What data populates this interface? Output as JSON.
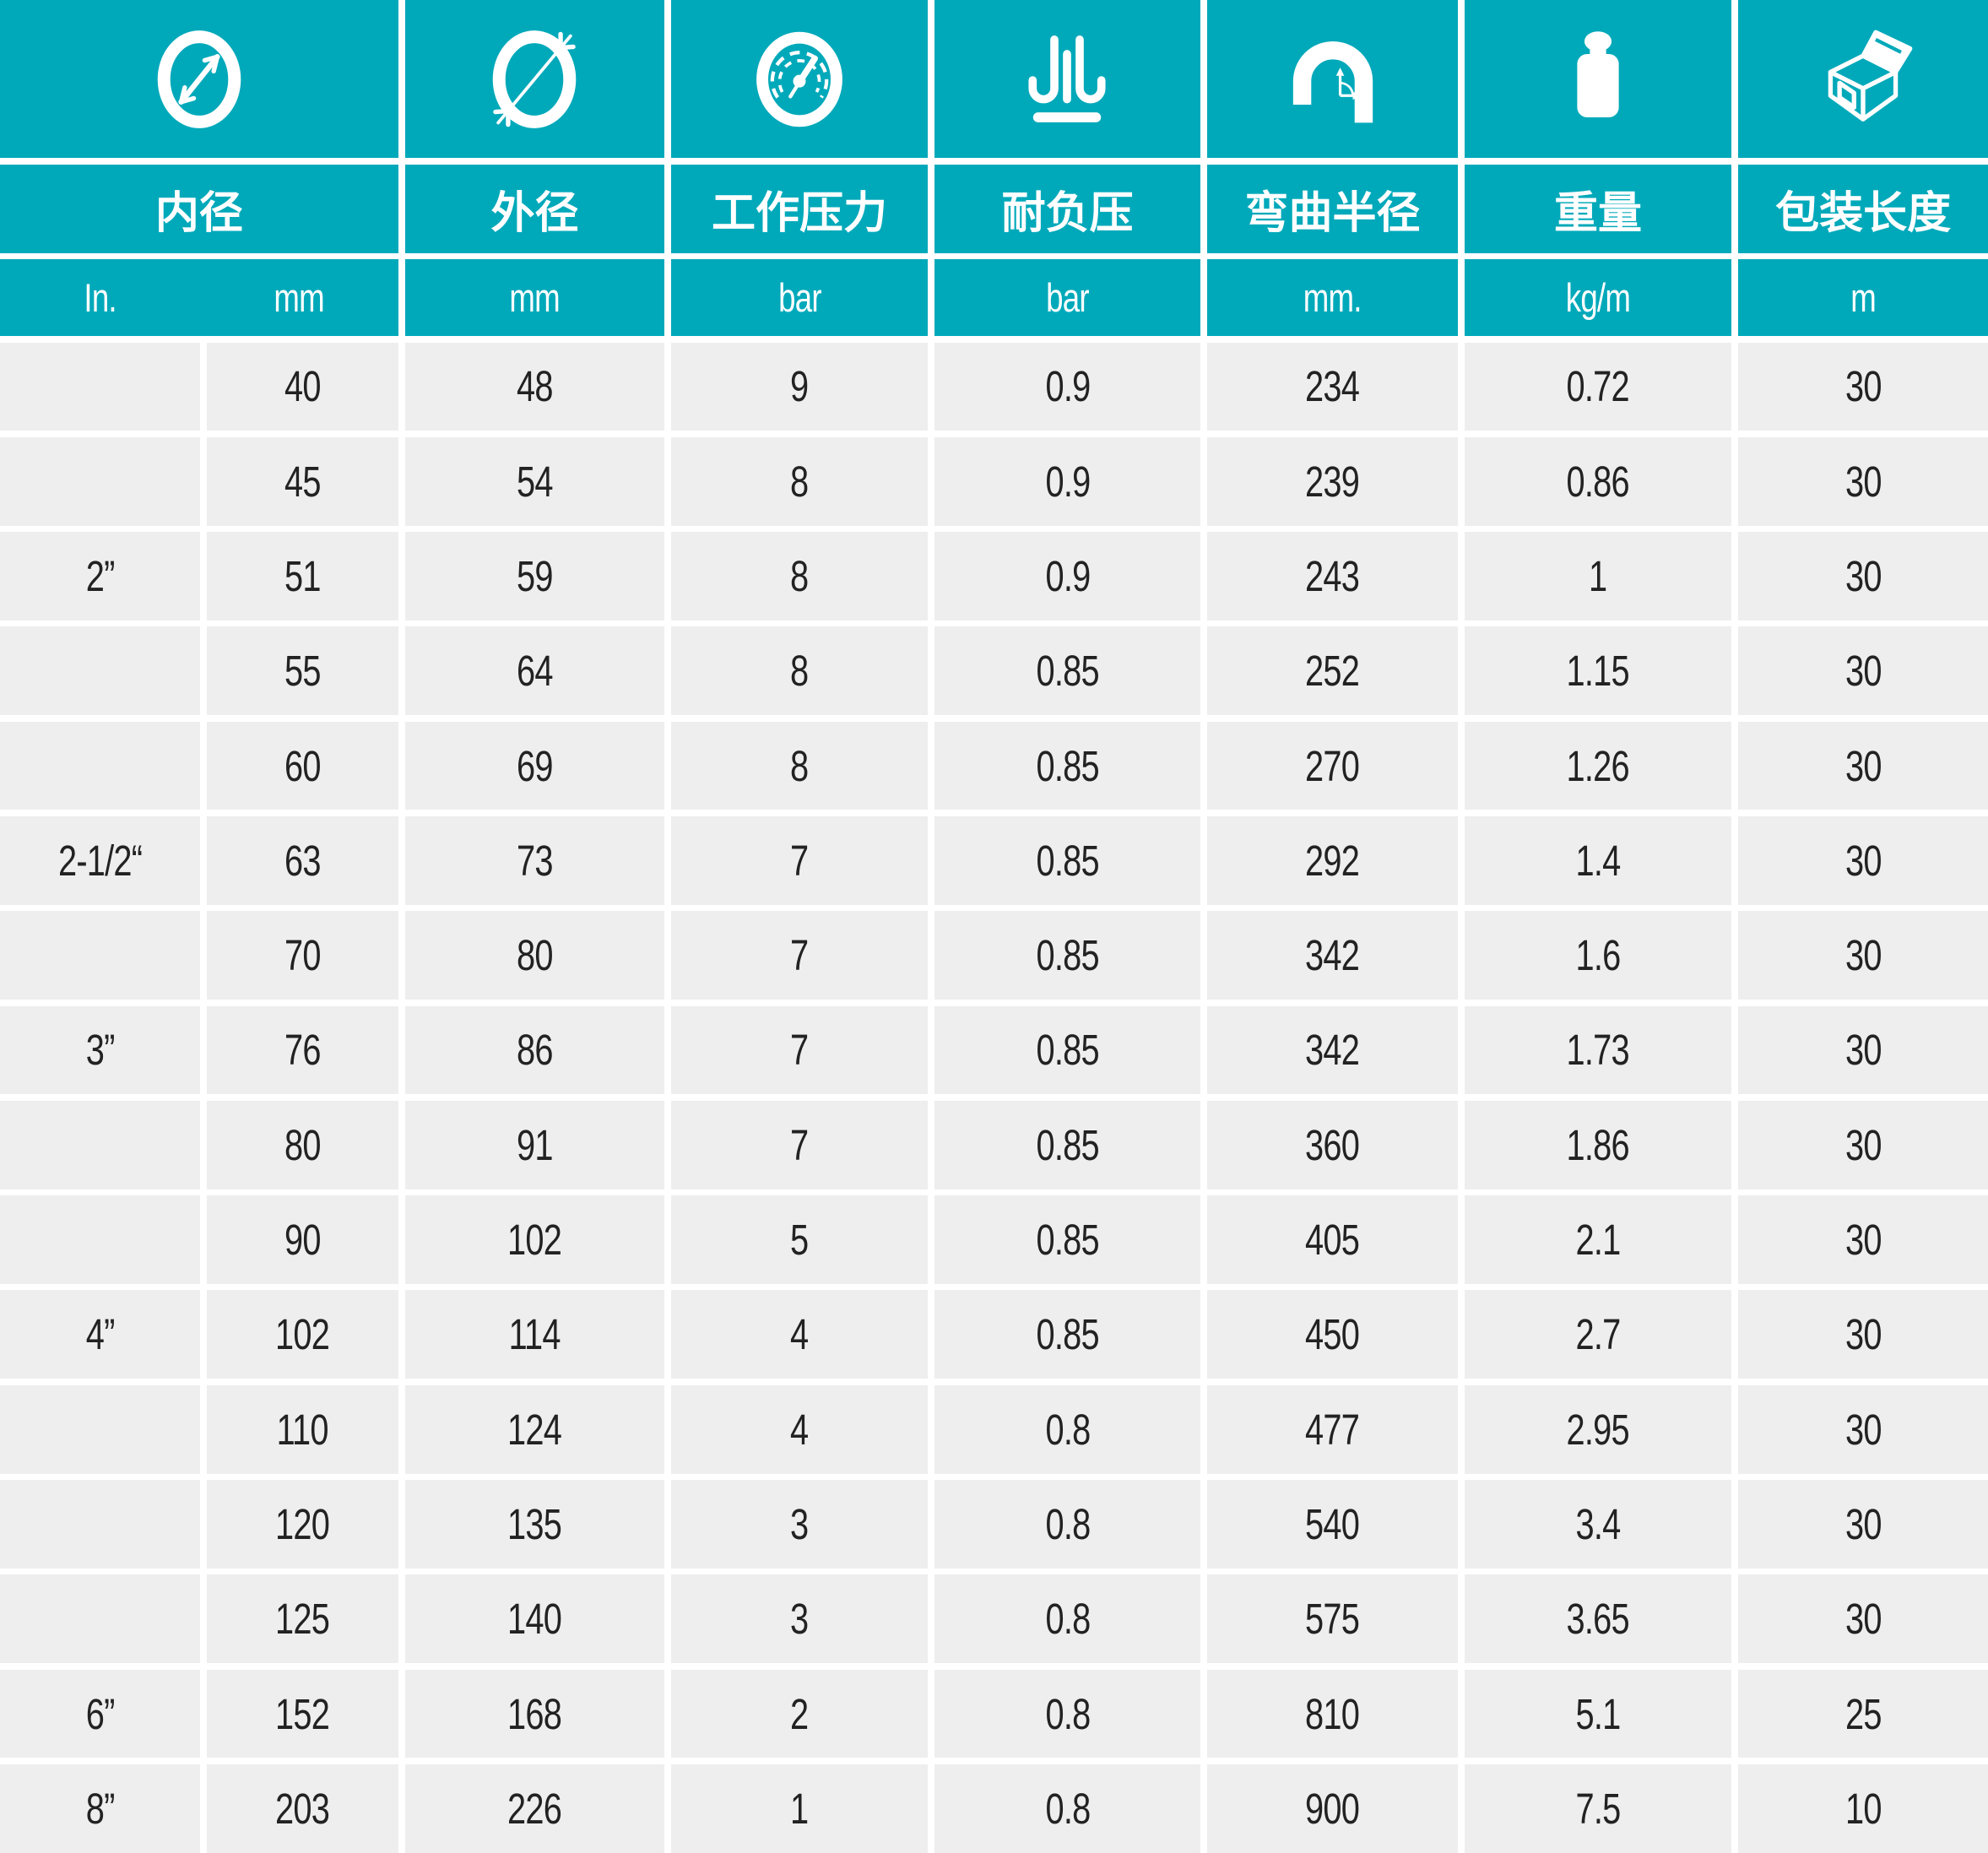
{
  "table": {
    "columns": [
      {
        "label": "内径",
        "icon": "inner-diameter-icon",
        "units": [
          "In.",
          "mm"
        ]
      },
      {
        "label": "外径",
        "icon": "outer-diameter-icon",
        "unit": "mm"
      },
      {
        "label": "工作压力",
        "icon": "pressure-gauge-icon",
        "unit": "bar"
      },
      {
        "label": "耐负压",
        "icon": "vacuum-resistance-icon",
        "unit": "bar"
      },
      {
        "label": "弯曲半径",
        "icon": "bend-radius-icon",
        "unit": "mm."
      },
      {
        "label": "重量",
        "icon": "weight-icon",
        "unit": "kg/m"
      },
      {
        "label": "包装长度",
        "icon": "package-length-icon",
        "unit": "m"
      }
    ],
    "column_keys": [
      "inch",
      "inner_mm",
      "outer_mm",
      "working_pressure_bar",
      "vacuum_bar",
      "bend_radius_mm",
      "weight_kg_m",
      "packing_length_m"
    ],
    "rows": [
      [
        "",
        "40",
        "48",
        "9",
        "0.9",
        "234",
        "0.72",
        "30"
      ],
      [
        "",
        "45",
        "54",
        "8",
        "0.9",
        "239",
        "0.86",
        "30"
      ],
      [
        "2”",
        "51",
        "59",
        "8",
        "0.9",
        "243",
        "1",
        "30"
      ],
      [
        "",
        "55",
        "64",
        "8",
        "0.85",
        "252",
        "1.15",
        "30"
      ],
      [
        "",
        "60",
        "69",
        "8",
        "0.85",
        "270",
        "1.26",
        "30"
      ],
      [
        "2-1/2“",
        "63",
        "73",
        "7",
        "0.85",
        "292",
        "1.4",
        "30"
      ],
      [
        "",
        "70",
        "80",
        "7",
        "0.85",
        "342",
        "1.6",
        "30"
      ],
      [
        "3”",
        "76",
        "86",
        "7",
        "0.85",
        "342",
        "1.73",
        "30"
      ],
      [
        "",
        "80",
        "91",
        "7",
        "0.85",
        "360",
        "1.86",
        "30"
      ],
      [
        "",
        "90",
        "102",
        "5",
        "0.85",
        "405",
        "2.1",
        "30"
      ],
      [
        "4”",
        "102",
        "114",
        "4",
        "0.85",
        "450",
        "2.7",
        "30"
      ],
      [
        "",
        "110",
        "124",
        "4",
        "0.8",
        "477",
        "2.95",
        "30"
      ],
      [
        "",
        "120",
        "135",
        "3",
        "0.8",
        "540",
        "3.4",
        "30"
      ],
      [
        "",
        "125",
        "140",
        "3",
        "0.8",
        "575",
        "3.65",
        "30"
      ],
      [
        "6”",
        "152",
        "168",
        "2",
        "0.8",
        "810",
        "5.1",
        "25"
      ],
      [
        "8”",
        "203",
        "226",
        "1",
        "0.8",
        "900",
        "7.5",
        "10"
      ]
    ]
  },
  "colors": {
    "accent": "#00a9ba",
    "cell_bg": "#eeeeee",
    "gap": "#ffffff",
    "text": "#222222",
    "header_text": "#ffffff"
  }
}
